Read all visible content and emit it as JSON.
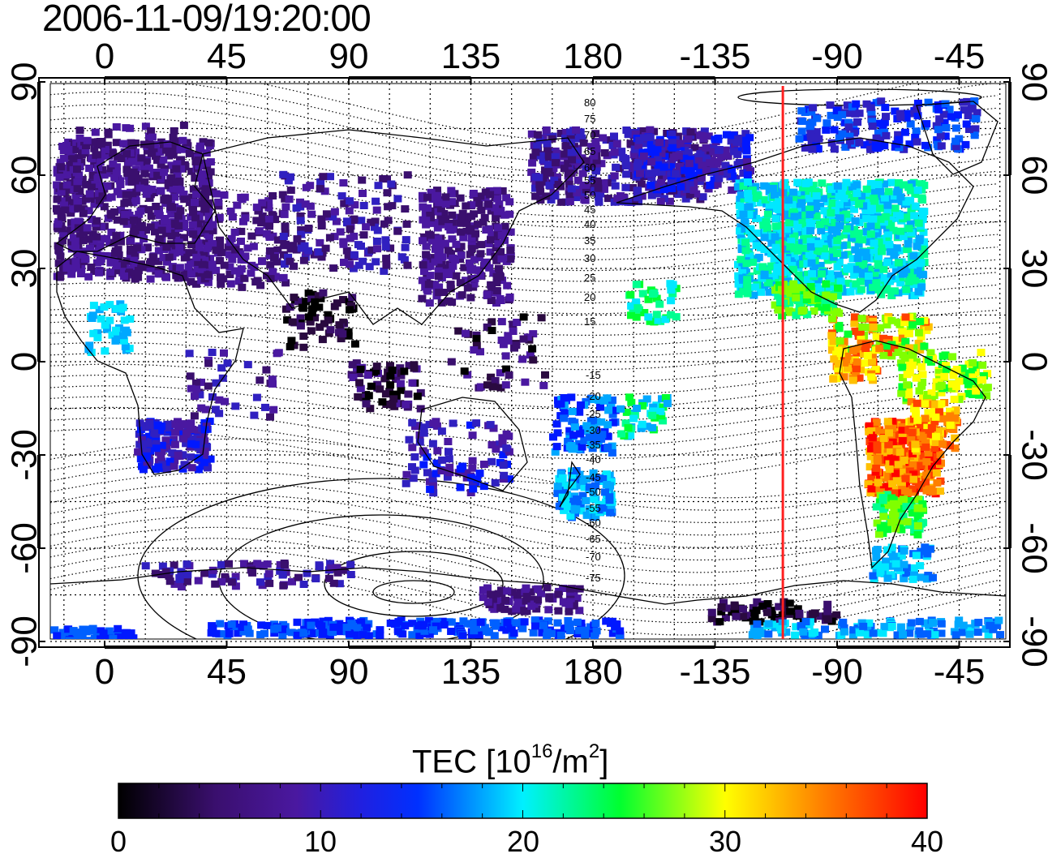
{
  "timestamp": "2006-11-09/19:20:00",
  "x_ticks": [
    "0",
    "45",
    "90",
    "135",
    "180",
    "-135",
    "-90",
    "-45"
  ],
  "y_ticks": [
    "90",
    "60",
    "30",
    "0",
    "-30",
    "-60",
    "-90"
  ],
  "contour_labels_north": [
    "80",
    "75",
    "70",
    "65",
    "60",
    "55",
    "50",
    "45",
    "40",
    "35",
    "30",
    "25",
    "20",
    "15"
  ],
  "contour_labels_south": [
    "-15",
    "-20",
    "-25",
    "-30",
    "-35",
    "-40",
    "-45",
    "-50",
    "-55",
    "-60",
    "-65",
    "-70",
    "-75"
  ],
  "colorbar": {
    "title_prefix": "TEC  [10",
    "title_exp1": "16",
    "title_mid": "/m",
    "title_exp2": "2",
    "title_suffix": "]",
    "tick_0": "0",
    "tick_10": "10",
    "tick_20": "20",
    "tick_30": "30",
    "tick_40": "40",
    "min": 0,
    "max": 40
  },
  "terminator_longitude": -110,
  "colors": {
    "terminator": "#ff2020",
    "colormap": [
      "#000000",
      "#3a0f6e",
      "#4a18a0",
      "#0018ff",
      "#00e8ff",
      "#00ff30",
      "#ffff00",
      "#ff8000",
      "#ff0000"
    ]
  }
}
